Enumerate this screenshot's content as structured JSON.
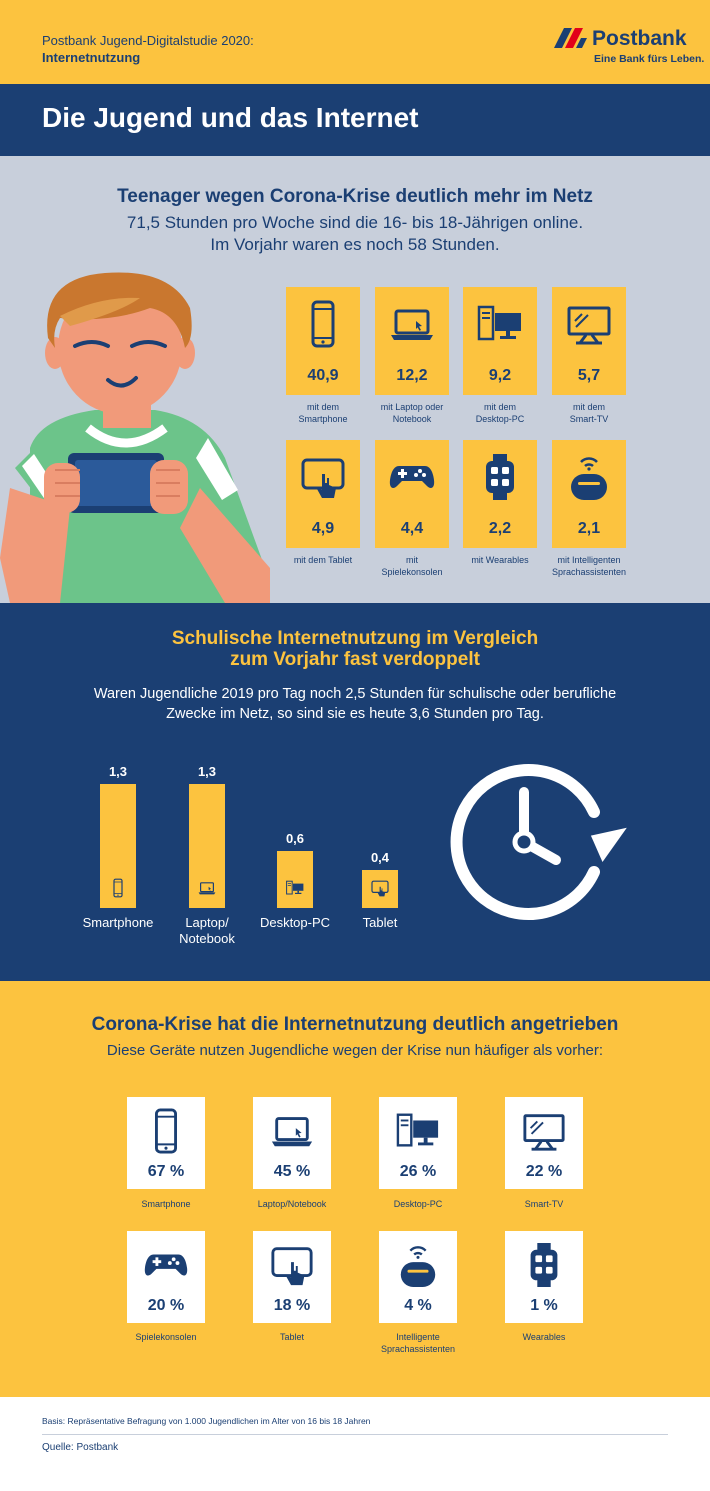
{
  "header": {
    "line1": "Postbank Jugend-Digitalstudie 2020:",
    "line2": "Internetnutzung",
    "logo_name": "Postbank",
    "logo_claim": "Eine Bank fürs Leben.",
    "colors": {
      "yellow": "#fcc33f",
      "navy": "#1b3f73",
      "red": "#e2001a"
    }
  },
  "title": "Die Jugend und das Internet",
  "section1": {
    "heading": "Teenager wegen Corona-Krise deutlich mehr im Netz",
    "sub_line1": "71,5 Stunden pro Woche sind die 16- bis 18-Jährigen online.",
    "sub_line2": "Im Vorjahr waren es noch 58 Stunden.",
    "tiles": [
      {
        "icon": "smartphone-icon",
        "value": "40,9",
        "label1": "mit dem",
        "label2": "Smartphone"
      },
      {
        "icon": "laptop-icon",
        "value": "12,2",
        "label1": "mit Laptop oder",
        "label2": "Notebook"
      },
      {
        "icon": "desktop-pc-icon",
        "value": "9,2",
        "label1": "mit dem",
        "label2": "Desktop-PC"
      },
      {
        "icon": "smart-tv-icon",
        "value": "5,7",
        "label1": "mit dem",
        "label2": "Smart-TV"
      },
      {
        "icon": "tablet-icon",
        "value": "4,9",
        "label1": "mit dem Tablet",
        "label2": ""
      },
      {
        "icon": "gamepad-icon",
        "value": "4,4",
        "label1": "mit",
        "label2": "Spielekonsolen"
      },
      {
        "icon": "smartwatch-icon",
        "value": "2,2",
        "label1": "mit Wearables",
        "label2": ""
      },
      {
        "icon": "smart-speaker-icon",
        "value": "2,1",
        "label1": "mit Intelligenten",
        "label2": "Sprachassistenten"
      }
    ]
  },
  "section2": {
    "heading_line1": "Schulische Internetnutzung im Vergleich",
    "heading_line2": "zum Vorjahr fast verdoppelt",
    "sub_line1": "Waren Jugendliche 2019 pro Tag noch 2,5 Stunden für schulische oder berufliche",
    "sub_line2": "Zwecke im Netz, so sind sie es heute 3,6 Stunden pro Tag.",
    "clock_icon": "clock-icon"
  },
  "section3": {
    "heading": "Corona-Krise hat die Internetnutzung deutlich angetrieben",
    "sub": "Diese Geräte nutzen Jugendliche wegen der Krise nun häufiger als vorher:",
    "tiles": [
      {
        "icon": "smartphone-icon",
        "value": "67 %",
        "label1": "Smartphone",
        "label2": ""
      },
      {
        "icon": "laptop-icon",
        "value": "45 %",
        "label1": "Laptop/Notebook",
        "label2": ""
      },
      {
        "icon": "desktop-pc-icon",
        "value": "26 %",
        "label1": "Desktop-PC",
        "label2": ""
      },
      {
        "icon": "smart-tv-icon",
        "value": "22 %",
        "label1": "Smart-TV",
        "label2": ""
      },
      {
        "icon": "gamepad-icon",
        "value": "20 %",
        "label1": "Spielekonsolen",
        "label2": ""
      },
      {
        "icon": "tablet-icon",
        "value": "18 %",
        "label1": "Tablet",
        "label2": ""
      },
      {
        "icon": "smart-speaker-icon",
        "value": "4 %",
        "label1": "Intelligente",
        "label2": "Sprachassistenten"
      },
      {
        "icon": "smartwatch-icon",
        "value": "1 %",
        "label1": "Wearables",
        "label2": ""
      }
    ]
  },
  "footer": {
    "basis": "Basis: Repräsentative Befragung von 1.000 Jugendlichen im Alter von 16 bis 18 Jahren",
    "source": "Quelle: Postbank"
  },
  "chart_data": {
    "type": "bar",
    "categories": [
      "Smartphone",
      "Laptop/ Notebook",
      "Desktop-PC",
      "Tablet"
    ],
    "category_lines": [
      [
        "Smartphone",
        ""
      ],
      [
        "Laptop/",
        "Notebook"
      ],
      [
        "Desktop-PC",
        ""
      ],
      [
        "Tablet",
        ""
      ]
    ],
    "values": [
      1.3,
      1.3,
      0.6,
      0.4
    ],
    "value_labels": [
      "1,3",
      "1,3",
      "0,6",
      "0,4"
    ],
    "icons": [
      "smartphone-icon",
      "laptop-icon",
      "desktop-pc-icon",
      "tablet-icon"
    ],
    "title": "",
    "xlabel": "",
    "ylabel": "",
    "ylim": [
      0,
      1.3
    ],
    "grid": false,
    "bar_color": "#fcc33f"
  }
}
